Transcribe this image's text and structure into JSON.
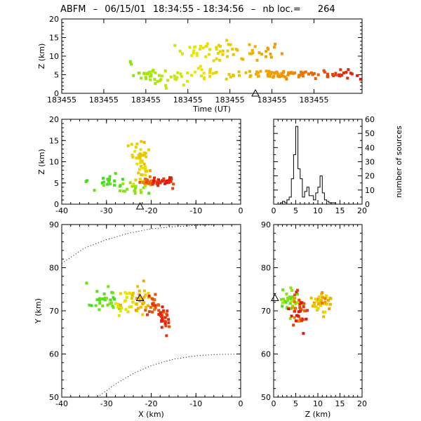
{
  "title": {
    "prefix": "ABFM",
    "date": "06/15/01",
    "time_range": "18:34:55 - 18:34:56",
    "count_label": "nb loc.=",
    "count": "264"
  },
  "colors": {
    "early": "#22e022",
    "mid": "#e8e800",
    "late_mid": "#f09000",
    "late": "#e01010"
  },
  "chart_data": [
    {
      "id": "time_height",
      "type": "scatter",
      "xlabel": "Time (UT)",
      "ylabel": "Z (km)",
      "xticks": [
        "183455",
        "183455",
        "183455",
        "183455",
        "183455",
        "183455",
        "183455",
        "183455"
      ],
      "ylim": [
        0,
        20
      ],
      "yticks": [
        0,
        5,
        10,
        15,
        20
      ],
      "marker": {
        "label": "△",
        "z": -0.5
      },
      "clusters": [
        {
          "t": 0.23,
          "z": 8.0,
          "n": 3,
          "spread_t": 0.004,
          "spread_z": 0.4
        },
        {
          "t": 0.28,
          "z": 5.2,
          "n": 14,
          "spread_t": 0.02,
          "spread_z": 0.8
        },
        {
          "t": 0.36,
          "z": 4.0,
          "n": 25,
          "spread_t": 0.04,
          "spread_z": 1.0
        },
        {
          "t": 0.48,
          "z": 11.5,
          "n": 30,
          "spread_t": 0.05,
          "spread_z": 1.1
        },
        {
          "t": 0.5,
          "z": 5.0,
          "n": 25,
          "spread_t": 0.06,
          "spread_z": 0.9
        },
        {
          "t": 0.62,
          "z": 11.0,
          "n": 30,
          "spread_t": 0.06,
          "spread_z": 1.5
        },
        {
          "t": 0.7,
          "z": 5.3,
          "n": 35,
          "spread_t": 0.05,
          "spread_z": 0.6
        },
        {
          "t": 0.8,
          "z": 5.2,
          "n": 30,
          "spread_t": 0.05,
          "spread_z": 0.6
        },
        {
          "t": 0.93,
          "z": 5.0,
          "n": 20,
          "spread_t": 0.03,
          "spread_z": 0.6
        }
      ]
    },
    {
      "id": "x_z",
      "type": "scatter",
      "ylabel": "Z (km)",
      "xlim": [
        -40,
        0
      ],
      "xticks": [
        -40,
        -30,
        -20,
        -10,
        0
      ],
      "ylim": [
        0,
        20
      ],
      "yticks": [
        0,
        5,
        10,
        15,
        20
      ],
      "marker": {
        "label": "△",
        "x": -22.5,
        "z": -0.5
      },
      "clusters": [
        {
          "x": -34.5,
          "z": 5.5,
          "n": 2,
          "spread_x": 0.2,
          "spread_z": 0.2,
          "c": 0.1
        },
        {
          "x": -29.5,
          "z": 5.3,
          "n": 20,
          "spread_x": 1.5,
          "spread_z": 0.7,
          "c": 0.12
        },
        {
          "x": -24.0,
          "z": 3.5,
          "n": 18,
          "spread_x": 1.5,
          "spread_z": 0.9,
          "c": 0.25
        },
        {
          "x": -22.5,
          "z": 11.5,
          "n": 30,
          "spread_x": 1.0,
          "spread_z": 1.4,
          "c": 0.55
        },
        {
          "x": -22.0,
          "z": 7.5,
          "n": 20,
          "spread_x": 1.0,
          "spread_z": 1.5,
          "c": 0.5
        },
        {
          "x": -20.0,
          "z": 5.2,
          "n": 25,
          "spread_x": 1.2,
          "spread_z": 0.6,
          "c": 0.8
        },
        {
          "x": -17.5,
          "z": 5.3,
          "n": 30,
          "spread_x": 1.3,
          "spread_z": 0.6,
          "c": 0.95
        }
      ]
    },
    {
      "id": "histogram",
      "type": "histogram",
      "xlim": [
        0,
        20
      ],
      "xticks": [
        0,
        5,
        10,
        15,
        20
      ],
      "ylabel": "number of sources",
      "ylim": [
        0,
        60
      ],
      "yticks": [
        0,
        10,
        20,
        30,
        40,
        50,
        60
      ],
      "bin_width": 0.5,
      "bin_start": 0,
      "counts": [
        0,
        0,
        0,
        1,
        2,
        1,
        3,
        5,
        18,
        35,
        55,
        25,
        18,
        5,
        9,
        12,
        6,
        6,
        3,
        8,
        12,
        20,
        8,
        3,
        2,
        1,
        1,
        1,
        0,
        0,
        0,
        0,
        0,
        0,
        0,
        0,
        0,
        0,
        0,
        0
      ]
    },
    {
      "id": "x_y",
      "type": "scatter",
      "xlabel": "X (km)",
      "ylabel": "Y (km)",
      "xlim": [
        -40,
        0
      ],
      "xticks": [
        -40,
        -30,
        -20,
        -10,
        0
      ],
      "ylim": [
        50,
        90
      ],
      "yticks": [
        50,
        60,
        70,
        80,
        90
      ],
      "marker": {
        "label": "△",
        "x": -22.5,
        "y": 73
      },
      "range_arcs": [
        {
          "points": [
            [
              -40,
              81
            ],
            [
              -35,
              84.5
            ],
            [
              -30,
              86.5
            ],
            [
              -25,
              88
            ],
            [
              -20,
              89
            ],
            [
              -15,
              89.5
            ],
            [
              -10,
              89.8
            ],
            [
              -5,
              90
            ],
            [
              0,
              90
            ]
          ]
        },
        {
          "points": [
            [
              -32,
              50
            ],
            [
              -28,
              53
            ],
            [
              -24,
              55.5
            ],
            [
              -20,
              57.3
            ],
            [
              -15,
              58.8
            ],
            [
              -10,
              59.6
            ],
            [
              -5,
              59.9
            ],
            [
              0,
              60
            ]
          ]
        }
      ],
      "clusters": [
        {
          "x": -34.5,
          "y": 76.5,
          "n": 1,
          "spread_x": 0.1,
          "spread_y": 0.1,
          "c": 0.1
        },
        {
          "x": -30.0,
          "y": 72.5,
          "n": 30,
          "spread_x": 1.5,
          "spread_y": 1.3,
          "c": 0.15
        },
        {
          "x": -25.0,
          "y": 72.0,
          "n": 25,
          "spread_x": 1.3,
          "spread_y": 1.5,
          "c": 0.45
        },
        {
          "x": -22.0,
          "y": 72.5,
          "n": 30,
          "spread_x": 1.2,
          "spread_y": 1.4,
          "c": 0.6
        },
        {
          "x": -19.5,
          "y": 71.0,
          "n": 20,
          "spread_x": 0.8,
          "spread_y": 1.2,
          "c": 0.85
        },
        {
          "x": -17.5,
          "y": 68.0,
          "n": 30,
          "spread_x": 0.8,
          "spread_y": 1.8,
          "c": 0.95
        }
      ]
    },
    {
      "id": "z_y",
      "type": "scatter",
      "xlabel": "Z (km)",
      "xlim": [
        0,
        20
      ],
      "xticks": [
        0,
        5,
        10,
        15,
        20
      ],
      "ylim": [
        50,
        90
      ],
      "yticks": [
        50,
        60,
        70,
        80,
        90
      ],
      "marker": {
        "label": "△",
        "z": 0.3,
        "y": 73
      },
      "clusters": [
        {
          "z": 4.0,
          "y": 72.5,
          "n": 30,
          "spread_z": 1.2,
          "spread_y": 1.5,
          "c": 0.2
        },
        {
          "z": 6.0,
          "y": 70.0,
          "n": 40,
          "spread_z": 0.9,
          "spread_y": 2.0,
          "c": 0.9
        },
        {
          "z": 10.0,
          "y": 71.0,
          "n": 30,
          "spread_z": 1.2,
          "spread_y": 1.3,
          "c": 0.55
        },
        {
          "z": 12.0,
          "y": 72.0,
          "n": 15,
          "spread_z": 0.7,
          "spread_y": 1.0,
          "c": 0.65
        }
      ]
    }
  ]
}
